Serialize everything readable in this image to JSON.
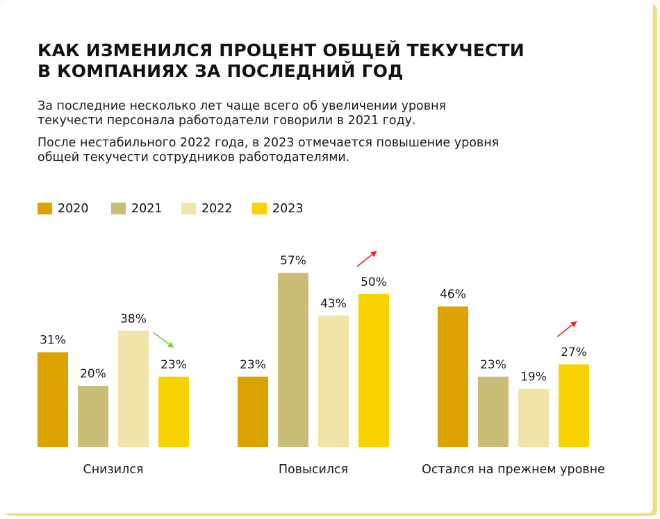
{
  "title_line1": "КАК ИЗМЕНИЛСЯ ПРОЦЕНТ ОБЩЕЙ ТЕКУЧЕСТИ",
  "title_line2": "В КОМПАНИЯХ ЗА ПОСЛЕДНИЙ ГОД",
  "paragraphs": [
    "За последние несколько лет чаще всего об увеличении уровня текучести персонала работодатели говорили в 2021 году.",
    "После нестабильного 2022 года, в 2023 отмечается повышение уровня общей текучести сотрудников работодателями."
  ],
  "colors": {
    "2020": "#dca300",
    "2021": "#c9bd78",
    "2022": "#f0e4a8",
    "2023": "#f8d300",
    "arrow_down": "#7ccf3a",
    "arrow_up": "#e8261e",
    "card_shadow": "#f6e27a"
  },
  "chart_data": {
    "type": "bar",
    "categories": [
      "Снизился",
      "Повысился",
      "Остался на прежнем уровне"
    ],
    "series": [
      {
        "name": "2020",
        "values": [
          31,
          23,
          46
        ]
      },
      {
        "name": "2021",
        "values": [
          20,
          57,
          23
        ]
      },
      {
        "name": "2022",
        "values": [
          38,
          43,
          19
        ]
      },
      {
        "name": "2023",
        "values": [
          23,
          50,
          27
        ]
      }
    ],
    "value_labels": [
      [
        "31%",
        "23%",
        "46%"
      ],
      [
        "20%",
        "57%",
        "23%"
      ],
      [
        "38%",
        "43%",
        "19%"
      ],
      [
        "23%",
        "50%",
        "27%"
      ]
    ],
    "unit": "%",
    "trend_arrows": [
      {
        "category": "Снизился",
        "direction": "down",
        "icon": "trend-down-arrow-icon"
      },
      {
        "category": "Повысился",
        "direction": "up",
        "icon": "trend-up-arrow-icon"
      },
      {
        "category": "Остался на прежнем уровне",
        "direction": "up",
        "icon": "trend-up-arrow-icon"
      }
    ],
    "legend_position": "top-left",
    "grid": false,
    "ylim": [
      0,
      57
    ]
  }
}
